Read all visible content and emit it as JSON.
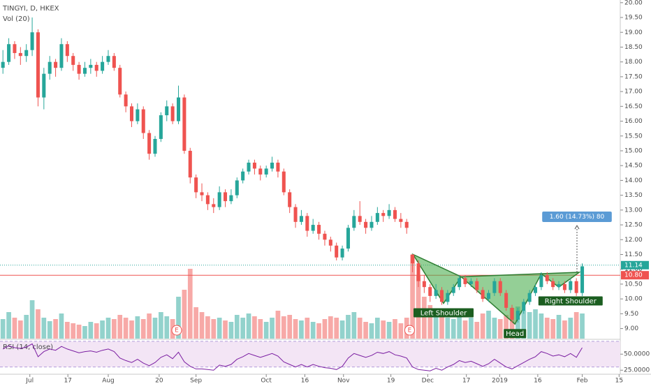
{
  "chart_data": {
    "type": "candlestick",
    "title": "TINGYI, D, HKEX",
    "volume_title": "Vol (20)",
    "rsi_title": "RSI (14, close)",
    "up_color": "#26a69a",
    "down_color": "#ef5350",
    "xlim": [
      0,
      106
    ],
    "xticks": [
      {
        "value": 5.1,
        "label": "Jul"
      },
      {
        "value": 11.6,
        "label": "17"
      },
      {
        "value": 18.5,
        "label": "Aug"
      },
      {
        "value": 27.2,
        "label": "20"
      },
      {
        "value": 33.5,
        "label": "Sep"
      },
      {
        "value": 45.5,
        "label": "Oct"
      },
      {
        "value": 52.1,
        "label": "16"
      },
      {
        "value": 58.7,
        "label": "Nov"
      },
      {
        "value": 66.8,
        "label": "19"
      },
      {
        "value": 73.1,
        "label": "Dec"
      },
      {
        "value": 79.7,
        "label": "17"
      },
      {
        "value": 85.4,
        "label": "2019"
      },
      {
        "value": 91.9,
        "label": "16"
      },
      {
        "value": 99.5,
        "label": "Feb"
      },
      {
        "value": 105.8,
        "label": "15"
      }
    ],
    "ylim": [
      8.66,
      20.09
    ],
    "yticks": [
      {
        "value": 9,
        "label": "9.00"
      },
      {
        "value": 9.5,
        "label": "9.50"
      },
      {
        "value": 10,
        "label": "10.00"
      },
      {
        "value": 10.5,
        "label": "10.50"
      },
      {
        "value": 11,
        "label": "11.00"
      },
      {
        "value": 11.5,
        "label": "11.50"
      },
      {
        "value": 12,
        "label": "12.00"
      },
      {
        "value": 12.5,
        "label": "12.50"
      },
      {
        "value": 13,
        "label": "13.00"
      },
      {
        "value": 13.5,
        "label": "13.50"
      },
      {
        "value": 14,
        "label": "14.00"
      },
      {
        "value": 14.5,
        "label": "14.50"
      },
      {
        "value": 15,
        "label": "15.00"
      },
      {
        "value": 15.5,
        "label": "15.50"
      },
      {
        "value": 16,
        "label": "16.00"
      },
      {
        "value": 16.5,
        "label": "16.50"
      },
      {
        "value": 17,
        "label": "17.00"
      },
      {
        "value": 17.5,
        "label": "17.50"
      },
      {
        "value": 18,
        "label": "18.00"
      },
      {
        "value": 18.5,
        "label": "18.50"
      },
      {
        "value": 19,
        "label": "19.00"
      },
      {
        "value": 19.5,
        "label": "19.50"
      },
      {
        "value": 20,
        "label": "20.00"
      }
    ],
    "candles": [
      [
        17.8,
        18.4,
        17.6,
        18.0
      ],
      [
        18.0,
        18.8,
        17.9,
        18.6
      ],
      [
        18.6,
        18.7,
        18.1,
        18.3
      ],
      [
        18.3,
        18.5,
        17.9,
        18.2
      ],
      [
        18.2,
        18.6,
        18.0,
        18.4
      ],
      [
        18.4,
        19.5,
        18.2,
        19.0
      ],
      [
        19.0,
        19.1,
        16.5,
        16.8
      ],
      [
        16.8,
        17.8,
        16.4,
        17.6
      ],
      [
        17.6,
        18.2,
        17.4,
        18.0
      ],
      [
        18.0,
        18.1,
        17.5,
        17.8
      ],
      [
        17.8,
        18.8,
        17.7,
        18.6
      ],
      [
        18.6,
        18.7,
        18.0,
        18.2
      ],
      [
        18.2,
        18.3,
        17.7,
        17.9
      ],
      [
        17.9,
        18.0,
        17.4,
        17.6
      ],
      [
        17.6,
        18.0,
        17.5,
        17.8
      ],
      [
        17.8,
        18.1,
        17.6,
        17.9
      ],
      [
        17.9,
        18.0,
        17.5,
        17.7
      ],
      [
        17.7,
        18.2,
        17.6,
        18.0
      ],
      [
        18.0,
        18.4,
        17.9,
        18.2
      ],
      [
        18.2,
        18.3,
        17.7,
        17.8
      ],
      [
        17.8,
        17.9,
        16.8,
        16.9
      ],
      [
        16.9,
        17.0,
        16.3,
        16.5
      ],
      [
        16.5,
        16.6,
        15.8,
        16.0
      ],
      [
        16.0,
        16.6,
        15.9,
        16.4
      ],
      [
        16.4,
        16.5,
        15.4,
        15.6
      ],
      [
        15.6,
        15.7,
        14.7,
        14.9
      ],
      [
        14.9,
        15.5,
        14.8,
        15.4
      ],
      [
        15.4,
        16.3,
        15.3,
        16.2
      ],
      [
        16.2,
        16.7,
        16.0,
        16.5
      ],
      [
        16.5,
        16.6,
        15.9,
        16.0
      ],
      [
        16.0,
        17.2,
        15.9,
        16.8
      ],
      [
        16.8,
        16.9,
        14.9,
        15.0
      ],
      [
        15.0,
        15.1,
        13.9,
        14.1
      ],
      [
        14.1,
        14.2,
        13.4,
        13.6
      ],
      [
        13.6,
        13.9,
        13.3,
        13.5
      ],
      [
        13.5,
        13.6,
        13.0,
        13.2
      ],
      [
        13.2,
        13.4,
        12.9,
        13.1
      ],
      [
        13.1,
        13.8,
        13.0,
        13.6
      ],
      [
        13.6,
        13.7,
        13.1,
        13.3
      ],
      [
        13.3,
        13.7,
        13.2,
        13.5
      ],
      [
        13.5,
        14.1,
        13.4,
        14.0
      ],
      [
        14.0,
        14.4,
        13.9,
        14.3
      ],
      [
        14.3,
        14.7,
        14.2,
        14.6
      ],
      [
        14.6,
        14.7,
        14.2,
        14.4
      ],
      [
        14.4,
        14.5,
        14.0,
        14.2
      ],
      [
        14.2,
        14.5,
        14.1,
        14.4
      ],
      [
        14.4,
        14.8,
        14.3,
        14.6
      ],
      [
        14.6,
        14.7,
        14.1,
        14.3
      ],
      [
        14.3,
        14.4,
        13.5,
        13.6
      ],
      [
        13.6,
        13.7,
        12.9,
        13.1
      ],
      [
        13.1,
        13.2,
        12.4,
        12.6
      ],
      [
        12.6,
        13.0,
        12.5,
        12.8
      ],
      [
        12.8,
        12.9,
        12.1,
        12.3
      ],
      [
        12.3,
        12.7,
        12.2,
        12.5
      ],
      [
        12.5,
        12.6,
        12.0,
        12.2
      ],
      [
        12.2,
        12.3,
        11.8,
        12.0
      ],
      [
        12.0,
        12.1,
        11.6,
        11.8
      ],
      [
        11.8,
        11.9,
        11.3,
        11.4
      ],
      [
        11.4,
        11.8,
        11.3,
        11.7
      ],
      [
        11.7,
        12.5,
        11.6,
        12.4
      ],
      [
        12.4,
        13.0,
        12.3,
        12.8
      ],
      [
        12.8,
        13.3,
        12.5,
        12.6
      ],
      [
        12.6,
        12.7,
        12.2,
        12.4
      ],
      [
        12.4,
        12.8,
        12.3,
        12.6
      ],
      [
        12.6,
        13.1,
        12.5,
        12.9
      ],
      [
        12.9,
        13.0,
        12.6,
        12.8
      ],
      [
        12.8,
        13.2,
        12.7,
        13.0
      ],
      [
        13.0,
        13.1,
        12.6,
        12.7
      ],
      [
        12.7,
        12.9,
        12.4,
        12.6
      ],
      [
        12.6,
        12.7,
        12.2,
        12.4
      ],
      [
        11.5,
        11.5,
        10.9,
        11.2
      ],
      [
        11.2,
        11.3,
        10.4,
        10.6
      ],
      [
        10.6,
        10.8,
        10.2,
        10.4
      ],
      [
        10.4,
        10.5,
        9.9,
        10.1
      ],
      [
        10.1,
        10.5,
        10.0,
        10.3
      ],
      [
        10.3,
        10.4,
        9.8,
        9.9
      ],
      [
        9.9,
        10.3,
        9.8,
        10.2
      ],
      [
        10.2,
        10.5,
        10.1,
        10.4
      ],
      [
        10.4,
        10.8,
        10.3,
        10.7
      ],
      [
        10.7,
        10.8,
        10.4,
        10.5
      ],
      [
        10.5,
        10.7,
        10.4,
        10.6
      ],
      [
        10.6,
        10.7,
        10.2,
        10.3
      ],
      [
        10.3,
        10.4,
        9.9,
        10.0
      ],
      [
        10.0,
        10.3,
        9.9,
        10.2
      ],
      [
        10.2,
        10.7,
        10.1,
        10.6
      ],
      [
        10.6,
        10.7,
        10.1,
        10.2
      ],
      [
        10.2,
        10.3,
        9.6,
        9.7
      ],
      [
        9.7,
        9.8,
        9.2,
        9.3
      ],
      [
        9.3,
        9.7,
        9.2,
        9.6
      ],
      [
        9.6,
        10.0,
        9.5,
        9.9
      ],
      [
        9.9,
        10.3,
        9.8,
        10.2
      ],
      [
        10.2,
        10.5,
        10.1,
        10.4
      ],
      [
        10.4,
        10.9,
        10.3,
        10.8
      ],
      [
        10.8,
        10.9,
        10.5,
        10.6
      ],
      [
        10.6,
        10.7,
        10.3,
        10.4
      ],
      [
        10.4,
        10.6,
        10.3,
        10.5
      ],
      [
        10.5,
        10.6,
        10.2,
        10.3
      ],
      [
        10.3,
        10.7,
        10.2,
        10.6
      ],
      [
        10.6,
        10.7,
        10.1,
        10.2
      ],
      [
        10.2,
        11.2,
        10.1,
        11.1
      ]
    ],
    "volume": [
      28,
      38,
      30,
      26,
      34,
      55,
      42,
      30,
      25,
      28,
      36,
      24,
      22,
      20,
      18,
      24,
      22,
      26,
      30,
      28,
      34,
      30,
      26,
      32,
      28,
      36,
      30,
      38,
      32,
      28,
      60,
      70,
      100,
      45,
      38,
      32,
      28,
      30,
      26,
      24,
      34,
      30,
      36,
      32,
      28,
      24,
      30,
      40,
      32,
      34,
      28,
      26,
      30,
      24,
      22,
      28,
      32,
      30,
      26,
      34,
      38,
      30,
      24,
      22,
      30,
      26,
      24,
      28,
      22,
      30,
      120,
      90,
      60,
      48,
      36,
      42,
      30,
      28,
      34,
      26,
      30,
      24,
      36,
      40,
      30,
      28,
      34,
      44,
      46,
      40,
      38,
      42,
      36,
      30,
      28,
      34,
      26,
      30,
      38,
      36
    ],
    "rsi": [
      58,
      63,
      60,
      59,
      61,
      66,
      46,
      54,
      58,
      56,
      62,
      58,
      55,
      52,
      54,
      55,
      53,
      56,
      58,
      54,
      44,
      40,
      37,
      42,
      36,
      32,
      37,
      45,
      49,
      43,
      53,
      38,
      31,
      27,
      27,
      26,
      25,
      33,
      31,
      34,
      42,
      46,
      51,
      48,
      45,
      48,
      51,
      47,
      38,
      34,
      30,
      34,
      30,
      34,
      31,
      29,
      28,
      26,
      31,
      44,
      51,
      48,
      45,
      48,
      53,
      51,
      54,
      49,
      47,
      44,
      30,
      26,
      25,
      24,
      28,
      25,
      30,
      34,
      40,
      37,
      39,
      35,
      31,
      35,
      42,
      36,
      30,
      27,
      32,
      37,
      42,
      46,
      54,
      51,
      47,
      49,
      46,
      51,
      45,
      60
    ],
    "rsi_ylim": [
      22,
      72
    ],
    "rsi_band": [
      30,
      70
    ],
    "rsi_color": "#7b1fa2",
    "rsi_ticks": [
      {
        "value": 50,
        "label": "50.0000"
      },
      {
        "value": 25,
        "label": "25.0000"
      }
    ],
    "price_lines": [
      {
        "value": 11.14,
        "label": "11.14",
        "color": "#26a69a"
      },
      {
        "value": 10.8,
        "label": "10.80",
        "color": "#ef5350"
      }
    ],
    "events": [
      {
        "x": 30.2,
        "label": "E"
      },
      {
        "x": 70,
        "label": "E"
      }
    ],
    "pattern": {
      "color": "#4caf50",
      "points": [
        [
          70.6,
          11.5
        ],
        [
          75.8,
          9.85
        ],
        [
          78.8,
          10.75
        ],
        [
          88,
          9.15
        ],
        [
          92.5,
          10.85
        ],
        [
          95.5,
          10.4
        ],
        [
          99,
          10.9
        ]
      ],
      "labels": [
        {
          "x": 75.8,
          "y": 9.85,
          "text": "Left Shoulder"
        },
        {
          "x": 88,
          "y": 9.15,
          "text": "Head"
        },
        {
          "x": 97.5,
          "y": 10.25,
          "text": "Right Shoulder"
        }
      ]
    },
    "measure": {
      "x": 98.6,
      "from": 10.9,
      "to": 12.5,
      "label": "1.60 (14.73%) 80"
    }
  }
}
